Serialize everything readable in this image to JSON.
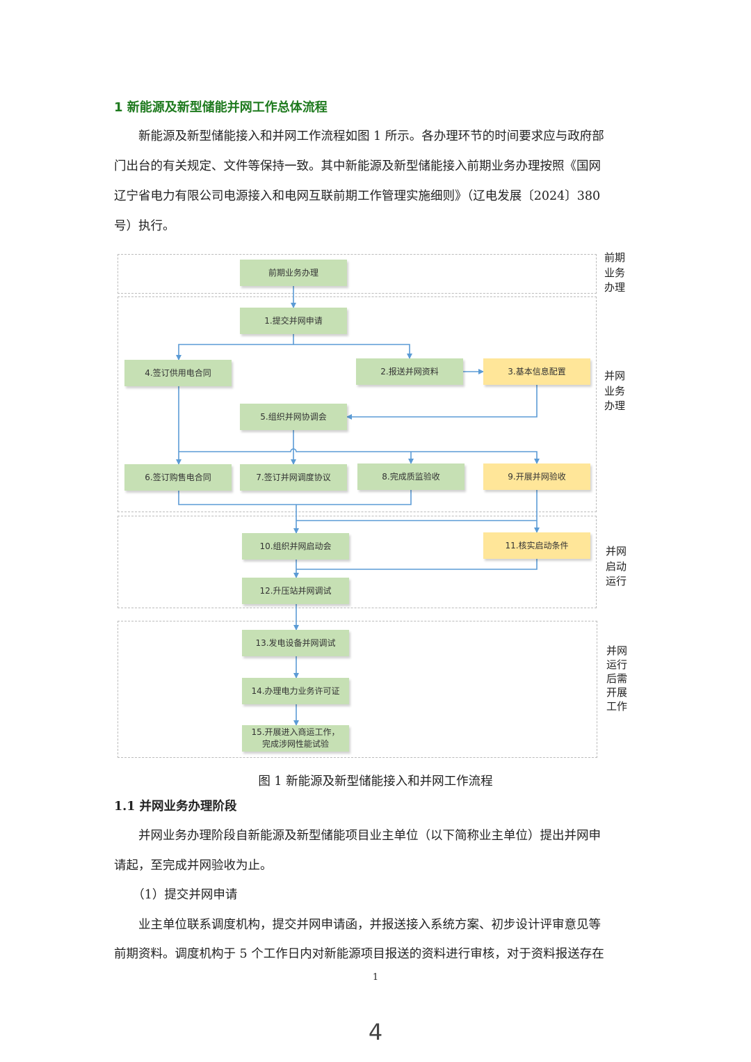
{
  "heading": "1 新能源及新型储能并网工作总体流程",
  "intro_lines": [
    "　　新能源及新型储能接入和并网工作流程如图 1 所示。各办理环节的时间要求应与政府部",
    "门出台的有关规定、文件等保持一致。其中新能源及新型储能接入前期业务办理按照《国网",
    "辽宁省电力有限公司电源接入和电网互联前期工作管理实施细则》（辽电发展〔2024〕380",
    "号）执行。"
  ],
  "flowchart": {
    "boxes": {
      "pre": "前期业务办理",
      "b1": "1.提交并网申请",
      "b2": "2.报送并网资料",
      "b3": "3.基本信息配置",
      "b4": "4.签订供用电合同",
      "b5": "5.组织并网协调会",
      "b6": "6.签订购售电合同",
      "b7": "7.签订并网调度协议",
      "b8": "8.完成质监验收",
      "b9": "9.开展并网验收",
      "b10": "10.组织并网启动会",
      "b11": "11.核实启动条件",
      "b12": "12.升压站并网调试",
      "b13": "13.发电设备并网调试",
      "b14": "14.办理电力业务许可证",
      "b15a": "15.开展进入商运工作，",
      "b15b": "完成涉网性能试验"
    },
    "stages": {
      "s1": "前期业务办理",
      "s2": "并网业务办理",
      "s3": "并网启动运行",
      "s4": "并网运行后需开展工作"
    },
    "colors": {
      "green_box": "#c6e0b4",
      "yellow_box": "#ffe699",
      "arrow": "#5b9bd5"
    }
  },
  "caption": "图 1  新能源及新型储能接入和并网工作流程",
  "section_heading": "1.1 并网业务办理阶段",
  "section_lines": [
    "　　并网业务办理阶段自新能源及新型储能项目业主单位（以下简称业主单位）提出并网申",
    "请起，至完成并网验收为止。",
    "　　（1）提交并网申请",
    "　　业主单位联系调度机构，提交并网申请函，并报送接入系统方案、初步设计评审意见等",
    "前期资料。调度机构于 5 个工作日内对新能源项目报送的资料进行审核，对于资料报送存在"
  ],
  "page_number": "1",
  "image_page_number": "4"
}
